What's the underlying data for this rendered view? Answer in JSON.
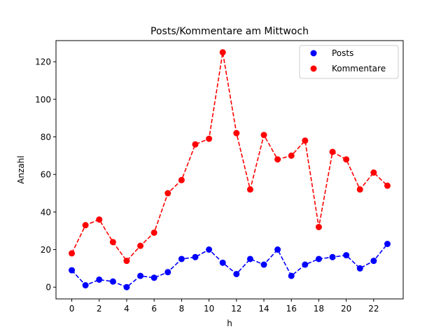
{
  "chart_data": {
    "type": "line",
    "title": "Posts/Kommentare am Mittwoch",
    "xlabel": "h",
    "ylabel": "Anzahl",
    "x": [
      0,
      1,
      2,
      3,
      4,
      5,
      6,
      7,
      8,
      9,
      10,
      11,
      12,
      13,
      14,
      15,
      16,
      17,
      18,
      19,
      20,
      21,
      22,
      23
    ],
    "xlim": [
      -1.15,
      24.15
    ],
    "ylim": [
      -6.25,
      131.25
    ],
    "xticks": [
      0,
      2,
      4,
      6,
      8,
      10,
      12,
      14,
      16,
      18,
      20,
      22
    ],
    "yticks": [
      0,
      20,
      40,
      60,
      80,
      100,
      120
    ],
    "grid": false,
    "legend_position": "top-right",
    "series": [
      {
        "name": "Posts",
        "color": "#0000ff",
        "line_style": "dashed",
        "marker": "circle",
        "values": [
          9,
          1,
          4,
          3,
          0,
          6,
          5,
          8,
          15,
          16,
          20,
          13,
          7,
          15,
          12,
          20,
          6,
          12,
          15,
          16,
          17,
          10,
          14,
          23
        ]
      },
      {
        "name": "Kommentare",
        "color": "#ff0000",
        "line_style": "dashed",
        "marker": "circle",
        "values": [
          18,
          33,
          36,
          24,
          14,
          22,
          29,
          50,
          57,
          76,
          79,
          125,
          82,
          52,
          81,
          68,
          70,
          78,
          32,
          72,
          68,
          52,
          61,
          54
        ]
      }
    ]
  }
}
